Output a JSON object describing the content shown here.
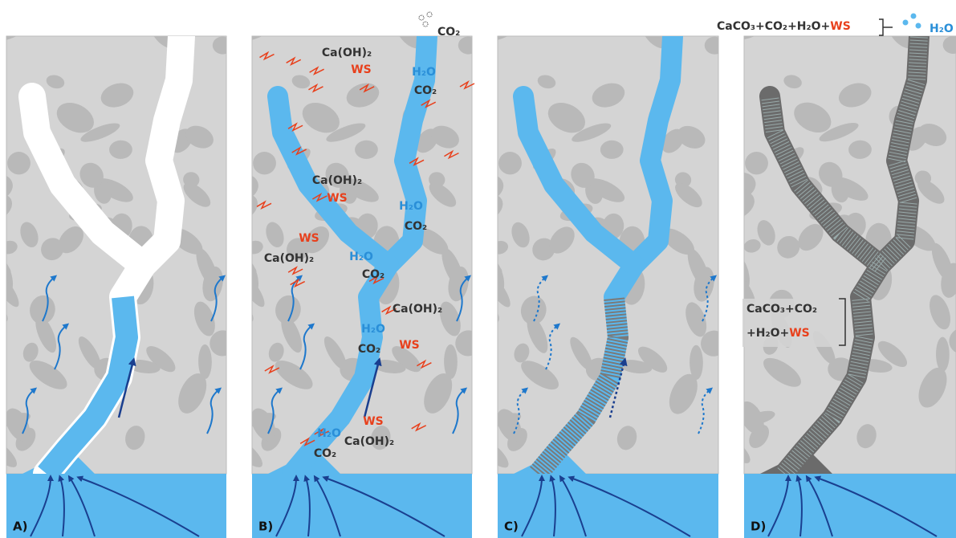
{
  "panels": [
    {
      "label": "A)"
    },
    {
      "label": "B)"
    },
    {
      "label": "C)"
    },
    {
      "label": "D)"
    }
  ],
  "panel_b": {
    "top_gas": "CO₂",
    "annotations": [
      {
        "text": "Ca(OH)₂",
        "color": "#333333"
      },
      {
        "text": "WS",
        "color": "#e8401c"
      },
      {
        "text": "H₂O",
        "color": "#2a8fd8"
      },
      {
        "text": "CO₂",
        "color": "#333333"
      },
      {
        "text": "Ca(OH)₂",
        "color": "#333333"
      },
      {
        "text": "WS",
        "color": "#e8401c"
      },
      {
        "text": "H₂O",
        "color": "#2a8fd8"
      },
      {
        "text": "CO₂",
        "color": "#333333"
      },
      {
        "text": "WS",
        "color": "#e8401c"
      },
      {
        "text": "Ca(OH)₂",
        "color": "#333333"
      },
      {
        "text": "H₂O",
        "color": "#2a8fd8"
      },
      {
        "text": "CO₂",
        "color": "#333333"
      },
      {
        "text": "Ca(OH)₂",
        "color": "#333333"
      },
      {
        "text": "H₂O",
        "color": "#2a8fd8"
      },
      {
        "text": "CO₂",
        "color": "#333333"
      },
      {
        "text": "WS",
        "color": "#e8401c"
      },
      {
        "text": "WS",
        "color": "#e8401c"
      },
      {
        "text": "H₂O",
        "color": "#2a8fd8"
      },
      {
        "text": "CO₂",
        "color": "#333333"
      },
      {
        "text": "Ca(OH)₂",
        "color": "#333333"
      }
    ]
  },
  "panel_d": {
    "top_formula": "CaCO₃+CO₂+H₂O+",
    "top_ws": "WS",
    "top_gas": "H₂O",
    "inner_line1": "CaCO₃+CO₂",
    "inner_line2": "+H₂O+",
    "inner_ws": "WS"
  }
}
